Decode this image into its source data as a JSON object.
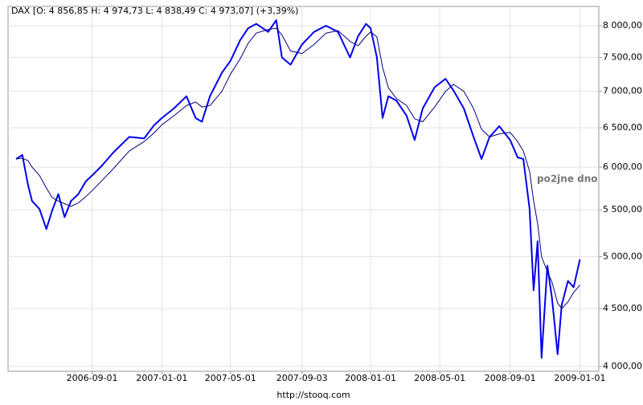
{
  "chart_data": {
    "type": "line",
    "title": "DAX [O: 4 856,85  H: 4 974,73  L: 4 838,49  C: 4 973,07] (+3,39%)",
    "annotation": "po2jne dno",
    "footer": "http://stooq.com",
    "log_scale": true,
    "grid": true,
    "xlim": [
      "2006-04-07",
      "2009-02-03"
    ],
    "xticks": [
      "2006-09-01",
      "2007-01-01",
      "2007-05-01",
      "2007-09-03",
      "2008-01-01",
      "2008-05-01",
      "2008-09-01",
      "2009-01-01"
    ],
    "ylim": [
      3961,
      8320
    ],
    "yticks": [
      {
        "value": 4000,
        "label": "4 000,00"
      },
      {
        "value": 4500,
        "label": "4 500,00"
      },
      {
        "value": 5000,
        "label": "5 000,00"
      },
      {
        "value": 5500,
        "label": "5 500,00"
      },
      {
        "value": 6000,
        "label": "6 000,00"
      },
      {
        "value": 6500,
        "label": "6 500,00"
      },
      {
        "value": 7000,
        "label": "7 000,00"
      },
      {
        "value": 7500,
        "label": "7 500,00"
      },
      {
        "value": 8000,
        "label": "8 000,00"
      }
    ],
    "x": [
      "2006-04-21",
      "2006-05-02",
      "2006-05-12",
      "2006-05-19",
      "2006-06-01",
      "2006-06-13",
      "2006-06-23",
      "2006-07-04",
      "2006-07-15",
      "2006-07-26",
      "2006-08-08",
      "2006-08-21",
      "2006-09-01",
      "2006-09-17",
      "2006-10-08",
      "2006-11-05",
      "2006-12-01",
      "2006-12-18",
      "2007-01-01",
      "2007-01-22",
      "2007-02-13",
      "2007-03-01",
      "2007-03-12",
      "2007-03-26",
      "2007-04-16",
      "2007-05-01",
      "2007-05-18",
      "2007-06-01",
      "2007-06-15",
      "2007-07-06",
      "2007-07-20",
      "2007-07-30",
      "2007-08-14",
      "2007-09-03",
      "2007-09-24",
      "2007-10-15",
      "2007-11-05",
      "2007-11-26",
      "2007-12-10",
      "2007-12-24",
      "2008-01-01",
      "2008-01-12",
      "2008-01-22",
      "2008-02-01",
      "2008-02-15",
      "2008-03-04",
      "2008-03-18",
      "2008-04-01",
      "2008-04-22",
      "2008-05-11",
      "2008-05-25",
      "2008-06-12",
      "2008-06-29",
      "2008-07-13",
      "2008-07-27",
      "2008-08-13",
      "2008-09-01",
      "2008-09-14",
      "2008-09-24",
      "2008-10-05",
      "2008-10-12",
      "2008-10-19",
      "2008-10-26",
      "2008-11-05",
      "2008-11-13",
      "2008-11-23",
      "2008-11-30",
      "2008-12-11",
      "2008-12-21",
      "2009-01-01"
    ],
    "series": [
      {
        "color": "#0000ee",
        "width": 2,
        "values": [
          6100,
          6150,
          5785,
          5600,
          5510,
          5290,
          5490,
          5680,
          5420,
          5600,
          5680,
          5830,
          5900,
          6010,
          6180,
          6380,
          6360,
          6530,
          6630,
          6760,
          6930,
          6630,
          6580,
          6930,
          7270,
          7450,
          7770,
          7960,
          8030,
          7900,
          8090,
          7500,
          7390,
          7700,
          7900,
          8000,
          7900,
          7500,
          7830,
          8030,
          7960,
          7500,
          6630,
          6930,
          6870,
          6660,
          6340,
          6760,
          7060,
          7180,
          7010,
          6760,
          6380,
          6100,
          6380,
          6520,
          6340,
          6120,
          6100,
          5510,
          4670,
          5160,
          4070,
          4910,
          4600,
          4100,
          4530,
          4760,
          4700,
          4973
        ]
      },
      {
        "color": "#000080",
        "width": 1,
        "values": [
          6100,
          6110,
          6080,
          6000,
          5900,
          5750,
          5640,
          5600,
          5570,
          5540,
          5580,
          5650,
          5720,
          5830,
          5980,
          6200,
          6320,
          6430,
          6540,
          6660,
          6800,
          6850,
          6780,
          6800,
          7000,
          7250,
          7480,
          7720,
          7880,
          7940,
          7960,
          7850,
          7600,
          7560,
          7700,
          7880,
          7920,
          7750,
          7680,
          7830,
          7900,
          7820,
          7350,
          7050,
          6900,
          6800,
          6620,
          6580,
          6780,
          7000,
          7100,
          7000,
          6760,
          6480,
          6380,
          6420,
          6440,
          6320,
          6200,
          5950,
          5600,
          5350,
          5000,
          4850,
          4750,
          4550,
          4500,
          4560,
          4650,
          4720
        ]
      }
    ]
  }
}
